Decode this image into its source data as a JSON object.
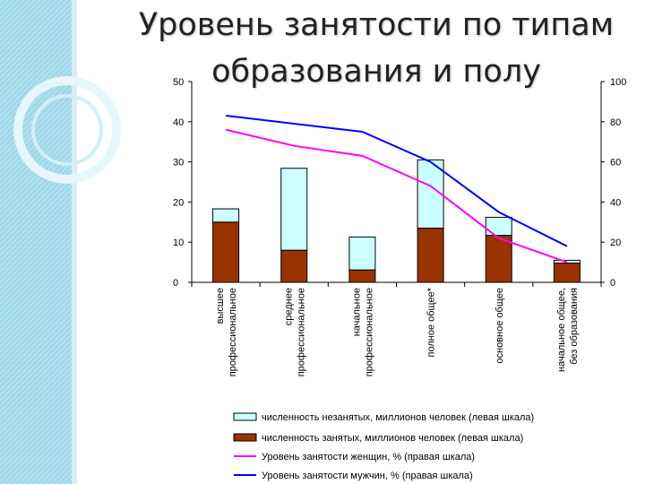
{
  "title_line1": "Уровень занятости по типам",
  "title_line2": "образования и полу",
  "chart_data": {
    "type": "bar",
    "categories": [
      [
        "высшее",
        "профессиональное"
      ],
      [
        "среднее",
        "профессиональное"
      ],
      [
        "начальное",
        "профессиональное"
      ],
      [
        "полное общее*"
      ],
      [
        "основное общее"
      ],
      [
        "начальное общее,",
        "без образования"
      ]
    ],
    "y_left": {
      "lim": [
        0,
        50
      ],
      "ticks": [
        0,
        10,
        20,
        30,
        40,
        50
      ]
    },
    "y_right": {
      "lim": [
        0,
        100
      ],
      "ticks": [
        0,
        20,
        40,
        60,
        80,
        100
      ]
    },
    "grid": false,
    "legend_position": "bottom",
    "series": [
      {
        "name": "численность незанятых, миллионов человек (левая шкала)",
        "kind": "stacked-bar",
        "axis": "left",
        "color": "#ccffff",
        "values": [
          3.3,
          20.4,
          8.2,
          17.0,
          4.5,
          0.7
        ]
      },
      {
        "name": "численность занятых, миллионов человек (левая шкала)",
        "kind": "stacked-bar",
        "axis": "left",
        "color": "#993300",
        "values": [
          15.0,
          8.0,
          3.1,
          13.5,
          11.7,
          4.8
        ]
      },
      {
        "name": "Уровень занятости женщин, % (правая шкала)",
        "kind": "line",
        "axis": "right",
        "color": "#ff00ff",
        "values": [
          76,
          68,
          63,
          48,
          22,
          10
        ]
      },
      {
        "name": "Уровень занятости мужчин, % (правая шкала)",
        "kind": "line",
        "axis": "right",
        "color": "#0000ff",
        "values": [
          83,
          79,
          75,
          60,
          35,
          18
        ]
      }
    ]
  }
}
